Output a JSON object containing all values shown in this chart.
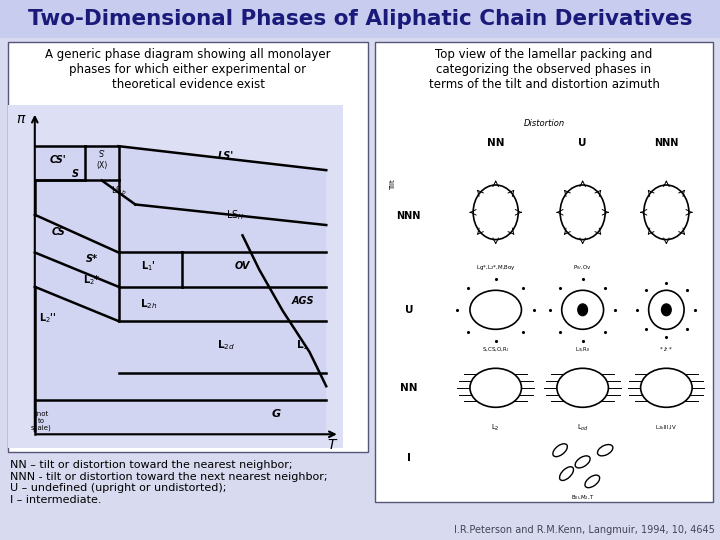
{
  "title": "Two-Dimensional Phases of Aliphatic Chain Derivatives",
  "title_color": "#1a1a7a",
  "title_fontsize": 15.5,
  "bg_color": "#d8daf0",
  "left_caption": "A generic phase diagram showing all monolayer\nphases for which either experimental or\ntheoretical evidence exist",
  "right_caption": "Top view of the lamellar packing and\ncategorizing the observed phases in\nterms of the tilt and distortion azimuth",
  "bottom_text": "NN – tilt or distortion toward the nearest neighbor;\nNNN - tilt or distortion toward the next nearest neighbor;\nU – undefined (upright or undistorted);\nI – intermediate.",
  "citation": "I.R.Peterson and R.M.Kenn, Langmuir, 1994, 10, 4645",
  "panel_bg": "#dde0f5"
}
